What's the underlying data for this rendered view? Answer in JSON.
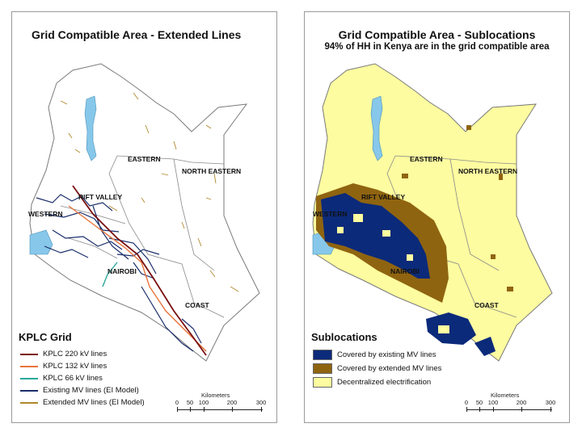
{
  "left_map": {
    "title": "Grid Compatible Area - Extended Lines",
    "regions": [
      "EASTERN",
      "NORTH EASTERN",
      "RIFT VALLEY",
      "WESTERN",
      "NAIROBI",
      "COAST"
    ],
    "legend": {
      "title": "KPLC Grid",
      "items": [
        {
          "label": "KPLC 220 kV lines",
          "color": "#7a1010"
        },
        {
          "label": "KPLC 132 kV lines",
          "color": "#e8733a"
        },
        {
          "label": "KPLC 66 kV lines",
          "color": "#2aa89a"
        },
        {
          "label": "Existing MV lines (EI Model)",
          "color": "#1a2e6b"
        },
        {
          "label": "Extended MV lines (EI Model)",
          "color": "#b0882a"
        }
      ]
    },
    "scale": {
      "unit": "Kilometers",
      "ticks": [
        "0",
        "50",
        "100",
        "200",
        "300"
      ]
    }
  },
  "right_map": {
    "title": "Grid Compatible Area - Sublocations",
    "subtitle": "94% of HH in Kenya are in the grid compatible area",
    "regions": [
      "EASTERN",
      "NORTH EASTERN",
      "RIFT VALLEY",
      "WESTERN",
      "NAIROBI",
      "COAST"
    ],
    "legend": {
      "title": "Sublocations",
      "items": [
        {
          "label": "Covered by existing MV lines",
          "color": "#0b2a7a"
        },
        {
          "label": "Covered by extended MV lines",
          "color": "#8f6410"
        },
        {
          "label": "Decentralized electrification",
          "color": "#fdfca0"
        }
      ]
    },
    "scale": {
      "unit": "Kilometers",
      "ticks": [
        "0",
        "50",
        "100",
        "200",
        "300"
      ]
    }
  },
  "colors": {
    "lake": "#87c8ea",
    "land_left": "#ffffff",
    "land_right": "#fdfca0",
    "border": "#7a7a7a"
  }
}
